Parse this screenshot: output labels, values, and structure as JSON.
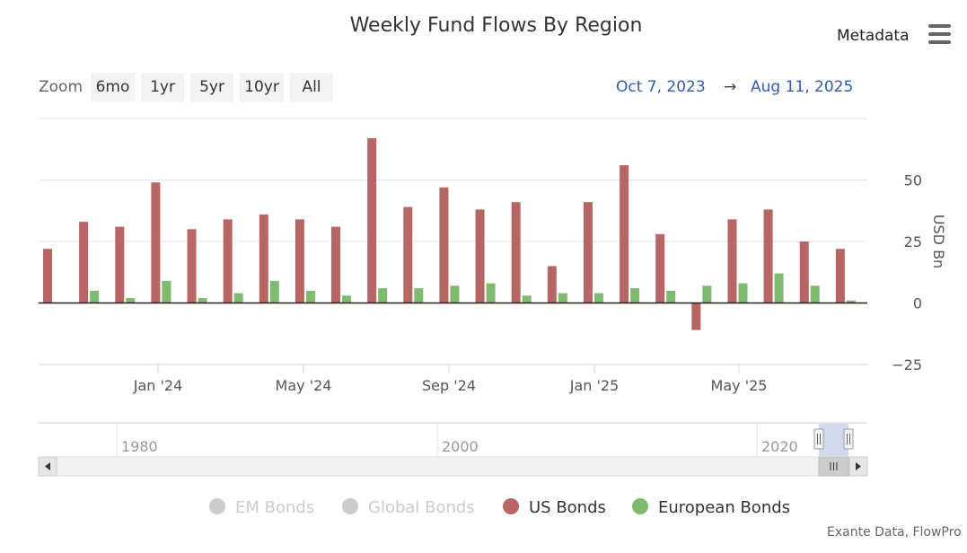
{
  "title": "Weekly Fund Flows By Region",
  "metadata_label": "Metadata",
  "menu_icon": "hamburger-menu-icon",
  "zoom": {
    "label": "Zoom",
    "buttons": [
      "6mo",
      "1yr",
      "5yr",
      "10yr",
      "All"
    ]
  },
  "range": {
    "from": "Oct 7, 2023",
    "arrow": "→",
    "to": "Aug 11, 2025"
  },
  "chart_data": {
    "type": "bar",
    "title": "Weekly Fund Flows By Region",
    "ylabel": "USD Bn",
    "xlabel": "",
    "ylim": [
      -25,
      75
    ],
    "yticks": [
      -25,
      0,
      25,
      50
    ],
    "yticks_labels": [
      "−25",
      "0",
      "25",
      "50"
    ],
    "xticks": [
      "Jan '24",
      "May '24",
      "Sep '24",
      "Jan '25",
      "May '25"
    ],
    "categories": [
      "Oct '23",
      "Nov '23",
      "Dec '23",
      "Jan '24",
      "Feb '24",
      "Mar '24",
      "Apr '24",
      "May '24",
      "Jun '24",
      "Jul '24",
      "Aug '24",
      "Sep '24",
      "Oct '24",
      "Nov '24",
      "Dec '24",
      "Jan '25",
      "Feb '25",
      "Mar '25",
      "Apr '25",
      "May '25",
      "Jun '25",
      "Jul '25",
      "Aug '25"
    ],
    "series": [
      {
        "name": "US Bonds",
        "color": "#b86565",
        "values": [
          22,
          33,
          31,
          49,
          30,
          34,
          36,
          34,
          31,
          67,
          39,
          47,
          38,
          41,
          15,
          41,
          56,
          28,
          -11,
          34,
          38,
          25,
          22
        ]
      },
      {
        "name": "European Bonds",
        "color": "#7fbb6f",
        "values": [
          null,
          5,
          2,
          9,
          2,
          4,
          9,
          5,
          3,
          6,
          6,
          7,
          8,
          3,
          4,
          4,
          6,
          5,
          7,
          8,
          12,
          7,
          1
        ]
      }
    ],
    "legend": {
      "position": "bottom-center",
      "items": [
        {
          "name": "EM Bonds",
          "visible": false
        },
        {
          "name": "Global Bonds",
          "visible": false
        },
        {
          "name": "US Bonds",
          "visible": true
        },
        {
          "name": "European Bonds",
          "visible": true
        }
      ]
    },
    "navigator": {
      "labels": [
        "1980",
        "2000",
        "2020"
      ]
    },
    "grid": true
  },
  "credits": "Exante Data, FlowPro",
  "colors": {
    "us_bonds": "#b86565",
    "european_bonds": "#7fbb6f",
    "hidden_series": "#cccccc",
    "range_link": "#335cad"
  }
}
